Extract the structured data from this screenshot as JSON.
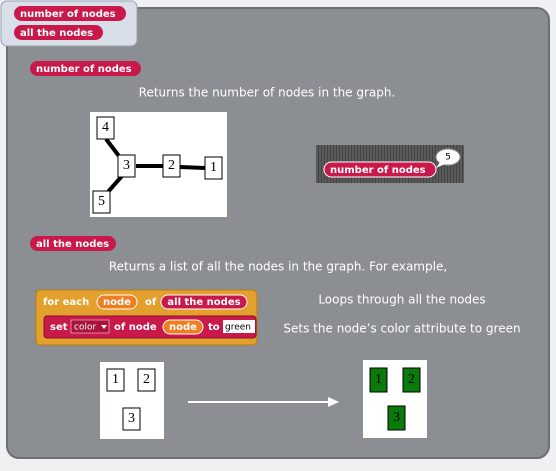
{
  "palette": {
    "blocks": [
      "number of nodes",
      "all the nodes"
    ]
  },
  "sections": [
    {
      "block": "number of nodes",
      "description": "Returns the number of nodes in the graph.",
      "graph_nodes": [
        "4",
        "3",
        "2",
        "1",
        "5"
      ],
      "result_block": "number of nodes",
      "result_bubble": "5"
    },
    {
      "block": "all the nodes",
      "description": "Returns a list of all the nodes in the graph. For example,",
      "script": {
        "for_each": "for each",
        "for_var": "node",
        "of": "of",
        "list": "all the nodes",
        "set": "set",
        "attribute": "color",
        "of_node": "of node",
        "node_var": "node",
        "to": "to",
        "value": "green"
      },
      "annotations": [
        "Loops through all the nodes",
        "Sets the node’s color attribute to green"
      ],
      "before_nodes": [
        "1",
        "2",
        "3"
      ],
      "after_nodes": [
        "1",
        "2",
        "3"
      ]
    }
  ]
}
